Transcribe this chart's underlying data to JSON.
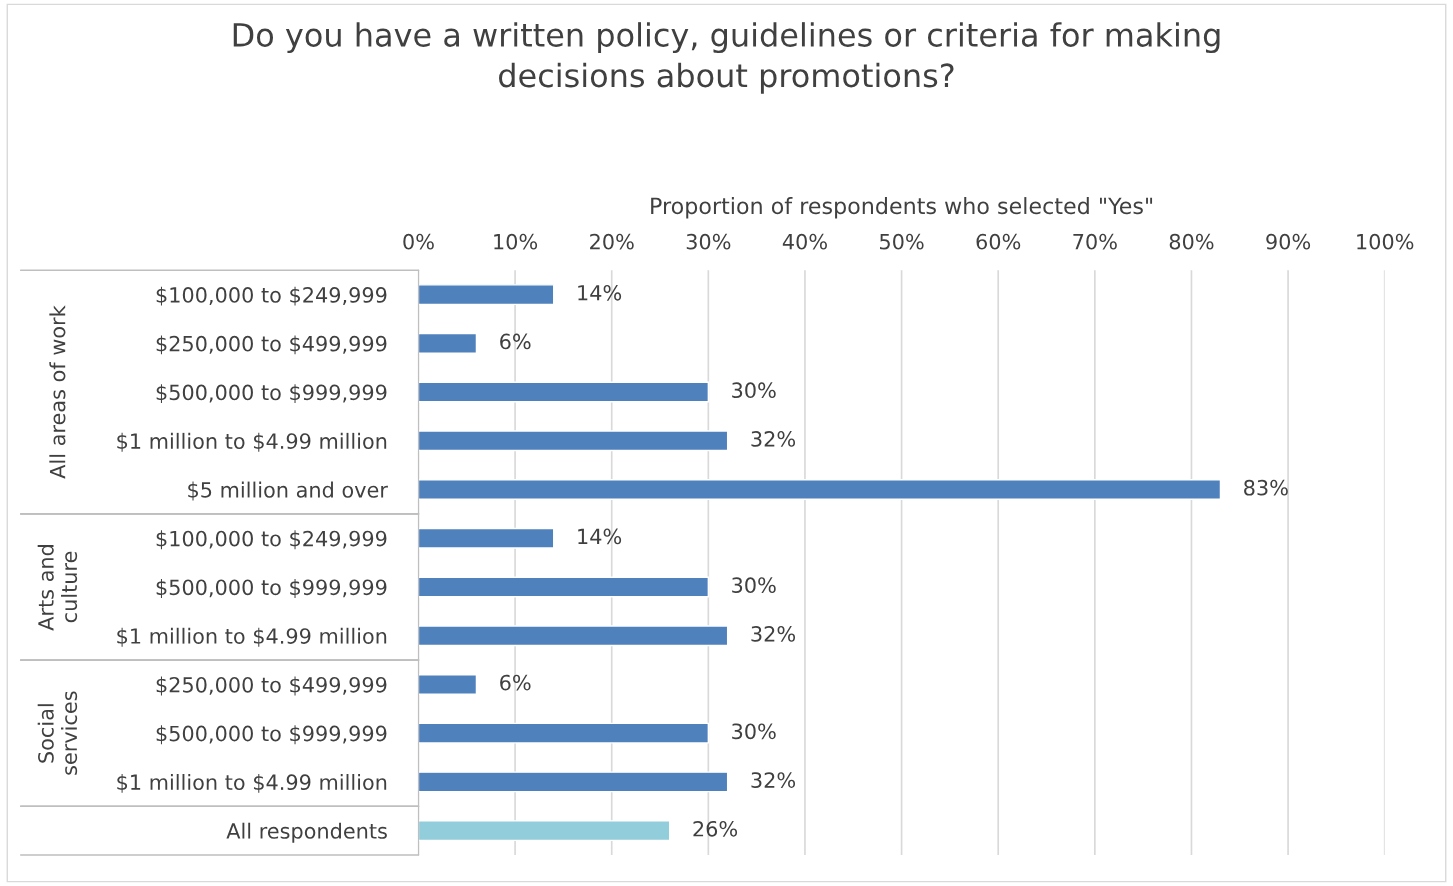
{
  "chart_data": {
    "type": "bar",
    "orientation": "horizontal",
    "title": "Do you have a written policy, guidelines or criteria for making\ndecisions about promotions?",
    "xlabel": "Proportion of respondents who selected \"Yes\"",
    "categories": [
      "$100,000 to $249,999",
      "$250,000 to $499,999",
      "$500,000 to $999,999",
      "$1 million to $4.99 million",
      "$5 million and over",
      "$100,000 to $249,999",
      "$500,000 to $999,999",
      "$1 million to $4.99 million",
      "$250,000 to $499,999",
      "$500,000 to $999,999",
      "$1 million to $4.99 million",
      "All respondents"
    ],
    "values": [
      14,
      6,
      30,
      32,
      83,
      14,
      30,
      32,
      6,
      30,
      32,
      26
    ],
    "colors": [
      "#4f81bd",
      "#4f81bd",
      "#4f81bd",
      "#4f81bd",
      "#4f81bd",
      "#4f81bd",
      "#4f81bd",
      "#4f81bd",
      "#4f81bd",
      "#4f81bd",
      "#4f81bd",
      "#92cddc"
    ],
    "value_labels": [
      "14%",
      "6%",
      "30%",
      "32%",
      "83%",
      "14%",
      "30%",
      "32%",
      "6%",
      "30%",
      "32%",
      "26%"
    ],
    "xlim": [
      0,
      100
    ],
    "xticks": [
      {
        "value": 0,
        "label": "0%"
      },
      {
        "value": 10,
        "label": "10%"
      },
      {
        "value": 20,
        "label": "20%"
      },
      {
        "value": 30,
        "label": "30%"
      },
      {
        "value": 40,
        "label": "40%"
      },
      {
        "value": 50,
        "label": "50%"
      },
      {
        "value": 60,
        "label": "60%"
      },
      {
        "value": 70,
        "label": "70%"
      },
      {
        "value": 80,
        "label": "80%"
      },
      {
        "value": 90,
        "label": "90%"
      },
      {
        "value": 100,
        "label": "100%"
      }
    ],
    "annotations": [
      "All areas of work",
      "Arts and\nculture",
      "Social\nservices"
    ],
    "grid": "x",
    "legend": false
  }
}
